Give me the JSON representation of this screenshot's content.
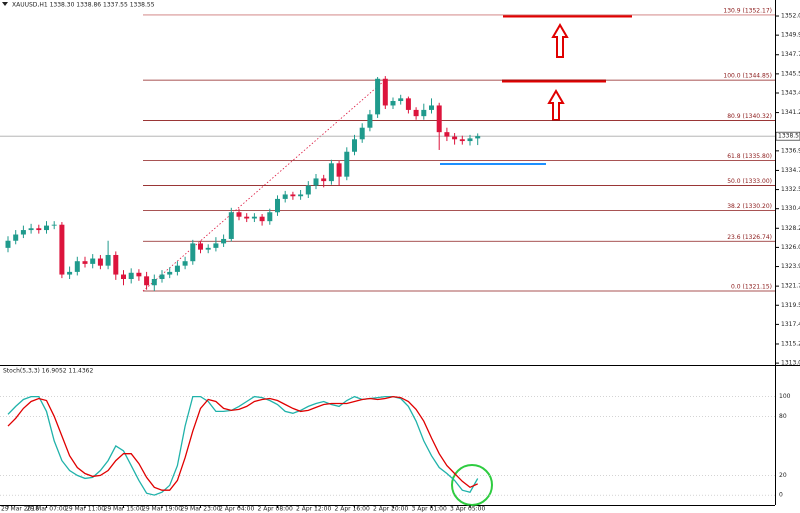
{
  "chart_data": [
    {
      "type": "candlestick",
      "title": "XAUUSD,H1  1338.30 1338.86 1337.55 1338.55",
      "categories": [
        "29 Mar 2018",
        null,
        null,
        null,
        null,
        "29 Mar 07:00",
        null,
        null,
        null,
        null,
        "29 Mar 11:00",
        null,
        null,
        null,
        null,
        "29 Mar 15:00",
        null,
        null,
        null,
        null,
        "29 Mar 19:00",
        null,
        null,
        null,
        null,
        "29 Mar 23:00",
        null,
        null,
        null,
        null,
        "2 Apr 04:00",
        null,
        null,
        null,
        null,
        "2 Apr 08:00",
        null,
        null,
        null,
        null,
        "2 Apr 12:00",
        null,
        null,
        null,
        null,
        "2 Apr 16:00",
        null,
        null,
        null,
        null,
        "2 Apr 20:00",
        null,
        null,
        null,
        null,
        "3 Apr 01:00",
        null,
        null,
        null,
        null,
        "3 Apr 05:00",
        null
      ],
      "open": [
        1326.0,
        1326.8,
        1327.5,
        1328.0,
        1328.2,
        1328.0,
        1328.5,
        1328.6,
        1323.0,
        1323.3,
        1324.5,
        1324.2,
        1324.8,
        1324.0,
        1325.2,
        1323.0,
        1322.5,
        1323.2,
        1322.8,
        1321.8,
        1322.5,
        1323.0,
        1323.3,
        1324.0,
        1324.5,
        1326.5,
        1325.8,
        1326.0,
        1326.5,
        1327.0,
        1330.0,
        1329.5,
        1329.3,
        1329.5,
        1329.0,
        1330.0,
        1331.5,
        1332.0,
        1331.8,
        1332.0,
        1333.0,
        1333.8,
        1333.5,
        1335.5,
        1334.0,
        1336.8,
        1338.2,
        1339.5,
        1341.0,
        1345.0,
        1342.0,
        1342.5,
        1342.8,
        1341.5,
        1340.8,
        1341.5,
        1342.0,
        1339.0,
        1338.5,
        1338.2,
        1338.0,
        1338.3
      ],
      "high": [
        1327.3,
        1328.0,
        1328.5,
        1328.7,
        1328.6,
        1329.0,
        1329.0,
        1328.9,
        1323.9,
        1325.0,
        1325.0,
        1325.3,
        1325.2,
        1326.8,
        1325.6,
        1323.5,
        1323.7,
        1323.6,
        1323.3,
        1323.0,
        1323.5,
        1323.8,
        1324.5,
        1325.0,
        1326.9,
        1326.8,
        1326.4,
        1327.2,
        1327.5,
        1330.5,
        1330.4,
        1329.9,
        1329.9,
        1329.8,
        1330.4,
        1331.9,
        1332.4,
        1332.3,
        1332.5,
        1333.5,
        1334.3,
        1334.2,
        1335.9,
        1335.8,
        1337.3,
        1338.7,
        1340.0,
        1341.5,
        1345.2,
        1345.3,
        1342.9,
        1343.2,
        1343.0,
        1341.8,
        1342.2,
        1342.8,
        1342.3,
        1339.5,
        1338.9,
        1338.6,
        1338.7,
        1338.86
      ],
      "low": [
        1325.5,
        1326.4,
        1327.1,
        1327.6,
        1327.6,
        1327.6,
        1328.1,
        1322.6,
        1322.5,
        1322.9,
        1323.8,
        1323.7,
        1323.6,
        1323.6,
        1322.4,
        1321.8,
        1322.0,
        1322.3,
        1321.3,
        1321.15,
        1322.1,
        1322.6,
        1322.9,
        1323.6,
        1324.1,
        1325.4,
        1325.4,
        1325.6,
        1326.1,
        1326.7,
        1329.1,
        1328.9,
        1328.9,
        1328.5,
        1328.6,
        1329.6,
        1331.1,
        1331.4,
        1331.4,
        1331.6,
        1332.6,
        1332.8,
        1333.1,
        1333.0,
        1333.6,
        1336.4,
        1337.8,
        1339.1,
        1340.6,
        1341.6,
        1341.6,
        1342.1,
        1341.1,
        1340.4,
        1340.4,
        1341.1,
        1337.0,
        1338.0,
        1337.6,
        1337.6,
        1337.5,
        1337.55
      ],
      "close": [
        1326.8,
        1327.5,
        1328.0,
        1328.2,
        1328.0,
        1328.5,
        1328.6,
        1323.0,
        1323.3,
        1324.5,
        1324.2,
        1324.8,
        1324.0,
        1325.2,
        1323.0,
        1322.5,
        1323.2,
        1322.8,
        1321.8,
        1322.5,
        1323.0,
        1323.3,
        1324.0,
        1324.5,
        1326.5,
        1325.8,
        1326.0,
        1326.5,
        1327.0,
        1330.0,
        1329.5,
        1329.3,
        1329.5,
        1329.0,
        1330.0,
        1331.5,
        1332.0,
        1331.8,
        1332.0,
        1333.0,
        1333.8,
        1333.5,
        1335.5,
        1334.0,
        1336.8,
        1338.2,
        1339.5,
        1341.0,
        1345.0,
        1342.0,
        1342.5,
        1342.8,
        1341.5,
        1340.8,
        1341.5,
        1342.0,
        1339.0,
        1338.5,
        1338.2,
        1338.0,
        1338.3,
        1338.55
      ],
      "up_color": "#1f9a8c",
      "down_color": "#dc143c",
      "levels": [
        {
          "value": 1352.17,
          "label": "130.9 (1352.17)"
        },
        {
          "value": 1344.85,
          "label": "100.0 (1344.85)"
        },
        {
          "value": 1340.32,
          "label": "80.9 (1340.32)"
        },
        {
          "value": 1335.8,
          "label": "61.8 (1335.80)"
        },
        {
          "value": 1333.0,
          "label": "50.0 (1333.00)"
        },
        {
          "value": 1330.2,
          "label": "38.2 (1330.20)"
        },
        {
          "value": 1326.74,
          "label": "23.6 (1326.74)"
        },
        {
          "value": 1321.15,
          "label": "0.0 (1321.15)"
        }
      ],
      "ylim": [
        1312.95,
        1353.85
      ],
      "yticks": [
        {
          "value": 1313.05,
          "label": "1313.05"
        },
        {
          "value": 1315.2,
          "label": "1315.20"
        },
        {
          "value": 1317.4,
          "label": "1317.40"
        },
        {
          "value": 1319.55,
          "label": "1319.55"
        },
        {
          "value": 1321.7,
          "label": "1321.70"
        },
        {
          "value": 1323.9,
          "label": "1323.90"
        },
        {
          "value": 1326.05,
          "label": "1326.05"
        },
        {
          "value": 1328.2,
          "label": "1328.20"
        },
        {
          "value": 1330.4,
          "label": "1330.40"
        },
        {
          "value": 1332.55,
          "label": "1332.55"
        },
        {
          "value": 1334.7,
          "label": "1334.70"
        },
        {
          "value": 1336.9,
          "label": "1336.90"
        },
        {
          "value": 1341.2,
          "label": "1341.20"
        },
        {
          "value": 1343.4,
          "label": "1343.40"
        },
        {
          "value": 1345.55,
          "label": "1345.55"
        },
        {
          "value": 1347.7,
          "label": "1347.70"
        },
        {
          "value": 1349.9,
          "label": "1349.90"
        },
        {
          "value": 1352.05,
          "label": "1352.05"
        }
      ]
    },
    {
      "type": "line",
      "title": "Stoch(5,3,3) 16.9052 11.4362",
      "series": [
        {
          "name": "%K",
          "color": "#20b2aa",
          "values": [
            82,
            90,
            97,
            100,
            100,
            85,
            55,
            35,
            25,
            20,
            17,
            18,
            25,
            35,
            50,
            45,
            30,
            15,
            2,
            0,
            3,
            10,
            30,
            70,
            100,
            100,
            95,
            85,
            85,
            86,
            90,
            95,
            100,
            99,
            96,
            92,
            85,
            83,
            86,
            90,
            93,
            95,
            92,
            90,
            96,
            100,
            97,
            98,
            99,
            100,
            100,
            98,
            90,
            75,
            55,
            40,
            28,
            22,
            15,
            5,
            3,
            16.9052
          ]
        },
        {
          "name": "%D",
          "color": "#e00000",
          "values": [
            70,
            78,
            88,
            95,
            98,
            96,
            80,
            60,
            40,
            28,
            22,
            19,
            20,
            25,
            35,
            42,
            42,
            32,
            18,
            8,
            5,
            5,
            15,
            38,
            65,
            88,
            97,
            95,
            88,
            86,
            87,
            90,
            95,
            97,
            98,
            96,
            92,
            88,
            85,
            86,
            89,
            92,
            93,
            93,
            93,
            95,
            97,
            98,
            97,
            98,
            100,
            99,
            95,
            87,
            75,
            58,
            42,
            30,
            22,
            14,
            8,
            11.4362
          ]
        }
      ],
      "ylim": [
        -10,
        130
      ],
      "yticks": [
        0,
        20,
        80,
        100
      ]
    }
  ]
}
